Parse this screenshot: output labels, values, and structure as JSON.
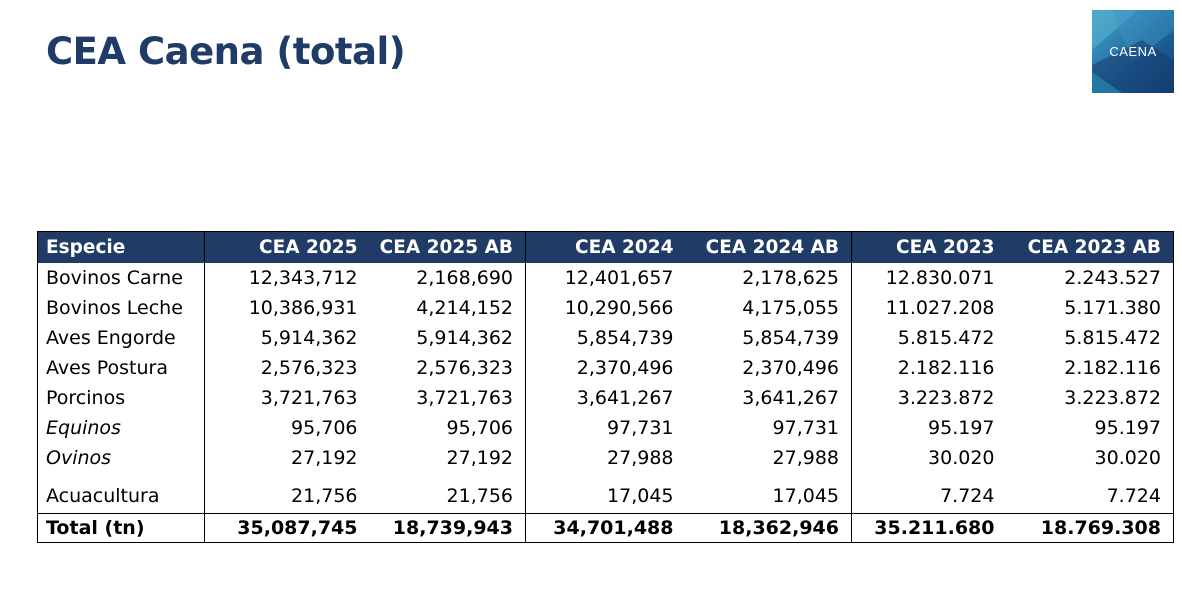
{
  "page": {
    "title": "CEA Caena (total)"
  },
  "logo": {
    "text": "CAENA"
  },
  "table": {
    "headers": [
      "Especie",
      "CEA 2025",
      "CEA 2025 AB",
      "CEA 2024",
      "CEA 2024 AB",
      "CEA 2023",
      "CEA 2023 AB"
    ],
    "rows": [
      {
        "especie": "Bovinos Carne",
        "values": [
          "12,343,712",
          "2,168,690",
          "12,401,657",
          "2,178,625",
          "12.830.071",
          "2.243.527"
        ]
      },
      {
        "especie": "Bovinos Leche",
        "values": [
          "10,386,931",
          "4,214,152",
          "10,290,566",
          "4,175,055",
          "11.027.208",
          "5.171.380"
        ]
      },
      {
        "especie": "Aves Engorde",
        "values": [
          "5,914,362",
          "5,914,362",
          "5,854,739",
          "5,854,739",
          "5.815.472",
          "5.815.472"
        ]
      },
      {
        "especie": "Aves Postura",
        "values": [
          "2,576,323",
          "2,576,323",
          "2,370,496",
          "2,370,496",
          "2.182.116",
          "2.182.116"
        ]
      },
      {
        "especie": "Porcinos",
        "values": [
          "3,721,763",
          "3,721,763",
          "3,641,267",
          "3,641,267",
          "3.223.872",
          "3.223.872"
        ]
      },
      {
        "especie": "Equinos",
        "values": [
          "95,706",
          "95,706",
          "97,731",
          "97,731",
          "95.197",
          "95.197"
        ]
      },
      {
        "especie": "Ovinos",
        "values": [
          "27,192",
          "27,192",
          "27,988",
          "27,988",
          "30.020",
          "30.020"
        ]
      },
      {
        "especie": "Acuacultura",
        "values": [
          "21,756",
          "21,756",
          "17,045",
          "17,045",
          "7.724",
          "7.724"
        ]
      }
    ],
    "total": {
      "label": "Total (tn)",
      "values": [
        "35,087,745",
        "18,739,943",
        "34,701,488",
        "18,362,946",
        "35.211.680",
        "18.769.308"
      ]
    }
  }
}
